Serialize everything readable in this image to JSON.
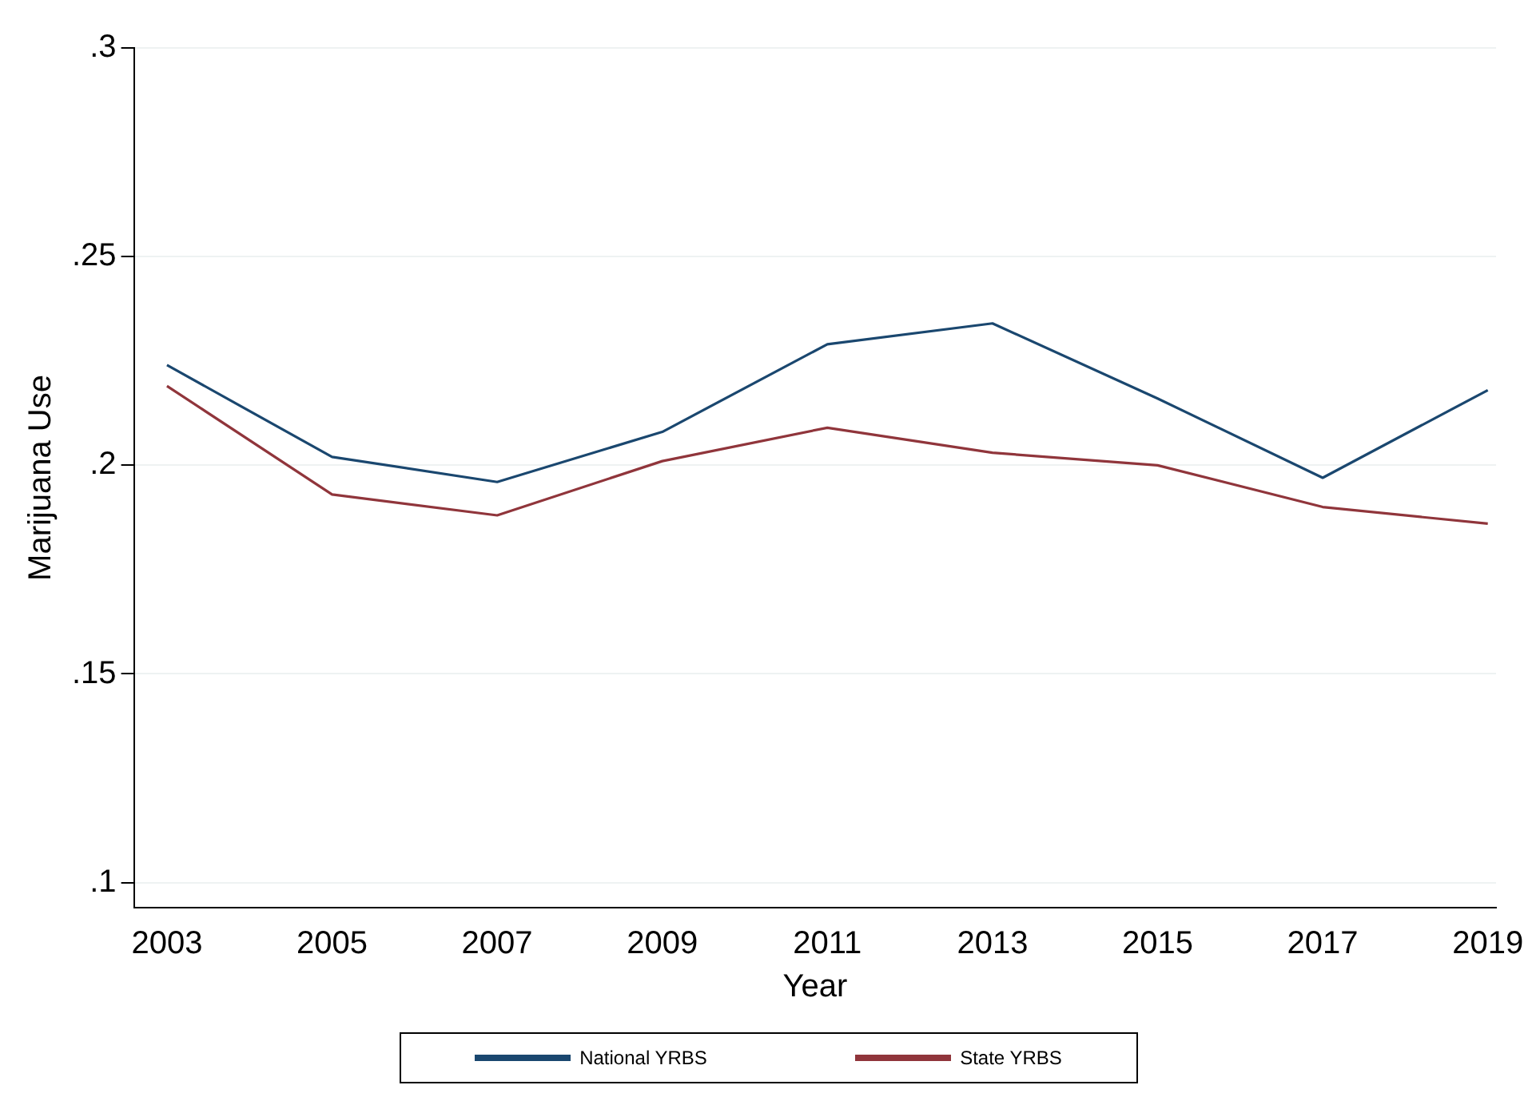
{
  "chart_data": {
    "type": "line",
    "xlabel": "Year",
    "ylabel": "Marijuana Use",
    "x": [
      2003,
      2005,
      2007,
      2009,
      2011,
      2013,
      2015,
      2017,
      2019
    ],
    "series": [
      {
        "name": "National YRBS",
        "color": "#1a476f",
        "values": [
          0.224,
          0.202,
          0.196,
          0.208,
          0.229,
          0.234,
          0.216,
          0.197,
          0.218
        ]
      },
      {
        "name": "State YRBS",
        "color": "#90353b",
        "values": [
          0.219,
          0.193,
          0.188,
          0.201,
          0.209,
          0.203,
          0.2,
          0.19,
          0.186
        ]
      }
    ],
    "xlim": [
      2002.6,
      2019.1
    ],
    "xticks": [
      2003,
      2005,
      2007,
      2009,
      2011,
      2013,
      2015,
      2017,
      2019
    ],
    "ylim": [
      0.094,
      0.3
    ],
    "yticks": [
      {
        "value": 0.1,
        "label": ".1"
      },
      {
        "value": 0.15,
        "label": ".15"
      },
      {
        "value": 0.2,
        "label": ".2"
      },
      {
        "value": 0.25,
        "label": ".25"
      },
      {
        "value": 0.3,
        "label": ".3"
      }
    ],
    "grid": "y",
    "legend": "bottom",
    "marker": "none",
    "line_style": "solid"
  }
}
